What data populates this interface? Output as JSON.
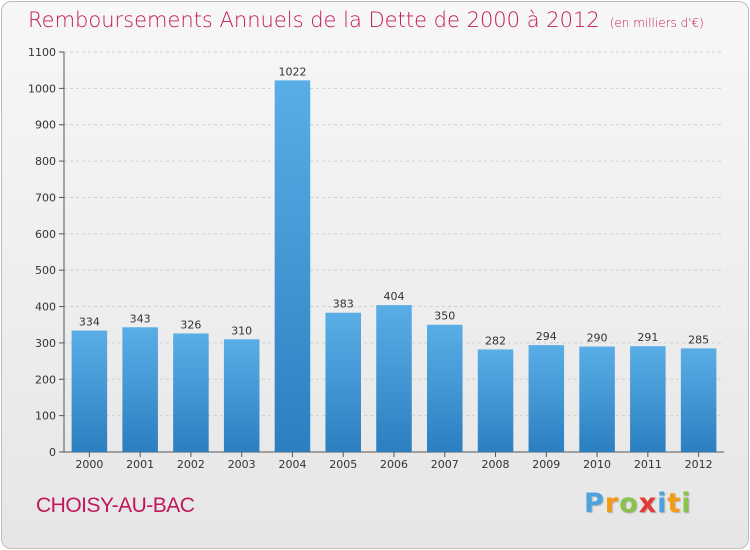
{
  "title": "Remboursements Annuels de la Dette de 2000 à 2012",
  "unit": "(en milliers d'€)",
  "commune": "CHOISY-AU-BAC",
  "brand": {
    "letters": [
      "P",
      "r",
      "o",
      "x",
      "i",
      "t",
      "i"
    ],
    "colors": [
      "#4aa3df",
      "#f39c12",
      "#8bc34a",
      "#e53935",
      "#4aa3df",
      "#f39c12",
      "#8bc34a"
    ]
  },
  "colors": {
    "bar_light": "#5aaee6",
    "bar_dark": "#2b7fc0",
    "title": "#c2185b",
    "grid": "#cfcfcf"
  },
  "chart_data": {
    "type": "bar",
    "categories": [
      "2000",
      "2001",
      "2002",
      "2003",
      "2004",
      "2005",
      "2006",
      "2007",
      "2008",
      "2009",
      "2010",
      "2011",
      "2012"
    ],
    "values": [
      334,
      343,
      326,
      310,
      1022,
      383,
      404,
      350,
      282,
      294,
      290,
      291,
      285
    ],
    "ylim": [
      0,
      1100
    ],
    "yticks": [
      0,
      100,
      200,
      300,
      400,
      500,
      600,
      700,
      800,
      900,
      1000,
      1100
    ],
    "grid": true
  }
}
